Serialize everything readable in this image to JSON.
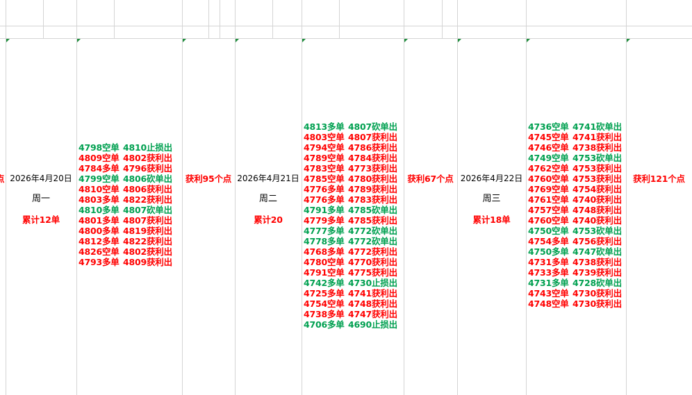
{
  "left_fragment": "点",
  "days": [
    {
      "date": "2026年4月20日",
      "weekday": "周一",
      "total": "累计12单",
      "profit": "获利95个点",
      "trades": [
        {
          "entry": "4798空单",
          "exit": "4810止损出",
          "color": "#00a050"
        },
        {
          "entry": "4809空单",
          "exit": "4802获利出",
          "color": "#ff0000"
        },
        {
          "entry": "4784多单",
          "exit": "4796获利出",
          "color": "#ff0000"
        },
        {
          "entry": "4799空单",
          "exit": "4806砍单出",
          "color": "#00a050"
        },
        {
          "entry": "4810空单",
          "exit": "4806获利出",
          "color": "#ff0000"
        },
        {
          "entry": "4803多单",
          "exit": "4822获利出",
          "color": "#ff0000"
        },
        {
          "entry": "4810多单",
          "exit": "4807砍单出",
          "color": "#00a050"
        },
        {
          "entry": "4801多单",
          "exit": "4807获利出",
          "color": "#ff0000"
        },
        {
          "entry": "4800多单",
          "exit": "4819获利出",
          "color": "#ff0000"
        },
        {
          "entry": "4812多单",
          "exit": "4822获利出",
          "color": "#ff0000"
        },
        {
          "entry": "4826空单",
          "exit": "4802获利出",
          "color": "#ff0000"
        },
        {
          "entry": "4793多单",
          "exit": "4809获利出",
          "color": "#ff0000"
        }
      ]
    },
    {
      "date": "2026年4月21日",
      "weekday": "周二",
      "total": "累计20",
      "profit": "获利67个点",
      "trades": [
        {
          "entry": "4813多单",
          "exit": "4807砍单出",
          "color": "#00a050"
        },
        {
          "entry": "4803空单",
          "exit": "4807获利出",
          "color": "#ff0000"
        },
        {
          "entry": "4794空单",
          "exit": "4786获利出",
          "color": "#ff0000"
        },
        {
          "entry": "4789空单",
          "exit": "4784获利出",
          "color": "#ff0000"
        },
        {
          "entry": "4783空单",
          "exit": "4773获利出",
          "color": "#ff0000"
        },
        {
          "entry": "4785空单",
          "exit": "4780获利出",
          "color": "#ff0000"
        },
        {
          "entry": "4776多单",
          "exit": "4789获利出",
          "color": "#ff0000"
        },
        {
          "entry": "4776多单",
          "exit": "4783获利出",
          "color": "#ff0000"
        },
        {
          "entry": "4791多单",
          "exit": "4785砍单出",
          "color": "#00a050"
        },
        {
          "entry": "4779多单",
          "exit": "4785获利出",
          "color": "#ff0000"
        },
        {
          "entry": "4777多单",
          "exit": "4772砍单出",
          "color": "#00a050"
        },
        {
          "entry": "4778多单",
          "exit": "4772砍单出",
          "color": "#00a050"
        },
        {
          "entry": "4768多单",
          "exit": "4772获利出",
          "color": "#ff0000"
        },
        {
          "entry": "4780空单",
          "exit": "4770获利出",
          "color": "#ff0000"
        },
        {
          "entry": "4791空单",
          "exit": "4775获利出",
          "color": "#ff0000"
        },
        {
          "entry": "4742多单",
          "exit": "4730止损出",
          "color": "#00a050"
        },
        {
          "entry": "4725多单",
          "exit": "4741获利出",
          "color": "#ff0000"
        },
        {
          "entry": "4754空单",
          "exit": "4748获利出",
          "color": "#ff0000"
        },
        {
          "entry": "4738多单",
          "exit": "4747获利出",
          "color": "#ff0000"
        },
        {
          "entry": "4706多单",
          "exit": "4690止损出",
          "color": "#00a050"
        }
      ]
    },
    {
      "date": "2026年4月22日",
      "weekday": "周三",
      "total": "累计18单",
      "profit": "获利121个点",
      "trades": [
        {
          "entry": "4736空单",
          "exit": "4741砍单出",
          "color": "#00a050"
        },
        {
          "entry": "4745空单",
          "exit": "4741获利出",
          "color": "#ff0000"
        },
        {
          "entry": "4746空单",
          "exit": "4738获利出",
          "color": "#ff0000"
        },
        {
          "entry": "4749空单",
          "exit": "4753砍单出",
          "color": "#00a050"
        },
        {
          "entry": "4762空单",
          "exit": "4753获利出",
          "color": "#ff0000"
        },
        {
          "entry": "4760空单",
          "exit": "4753获利出",
          "color": "#ff0000"
        },
        {
          "entry": "4769空单",
          "exit": "4754获利出",
          "color": "#ff0000"
        },
        {
          "entry": "4761空单",
          "exit": "4740获利出",
          "color": "#ff0000"
        },
        {
          "entry": "4757空单",
          "exit": "4748获利出",
          "color": "#ff0000"
        },
        {
          "entry": "4760空单",
          "exit": "4740获利出",
          "color": "#ff0000"
        },
        {
          "entry": "4750空单",
          "exit": "4753砍单出",
          "color": "#00a050"
        },
        {
          "entry": "4754多单",
          "exit": "4756获利出",
          "color": "#ff0000"
        },
        {
          "entry": "4750多单",
          "exit": "4747砍单出",
          "color": "#00a050"
        },
        {
          "entry": "4731多单",
          "exit": "4738获利出",
          "color": "#ff0000"
        },
        {
          "entry": "4733多单",
          "exit": "4739获利出",
          "color": "#ff0000"
        },
        {
          "entry": "4731多单",
          "exit": "4728砍单出",
          "color": "#00a050"
        },
        {
          "entry": "4743空单",
          "exit": "4730获利出",
          "color": "#ff0000"
        },
        {
          "entry": "4748空单",
          "exit": "4730获利出",
          "color": "#ff0000"
        }
      ]
    }
  ]
}
